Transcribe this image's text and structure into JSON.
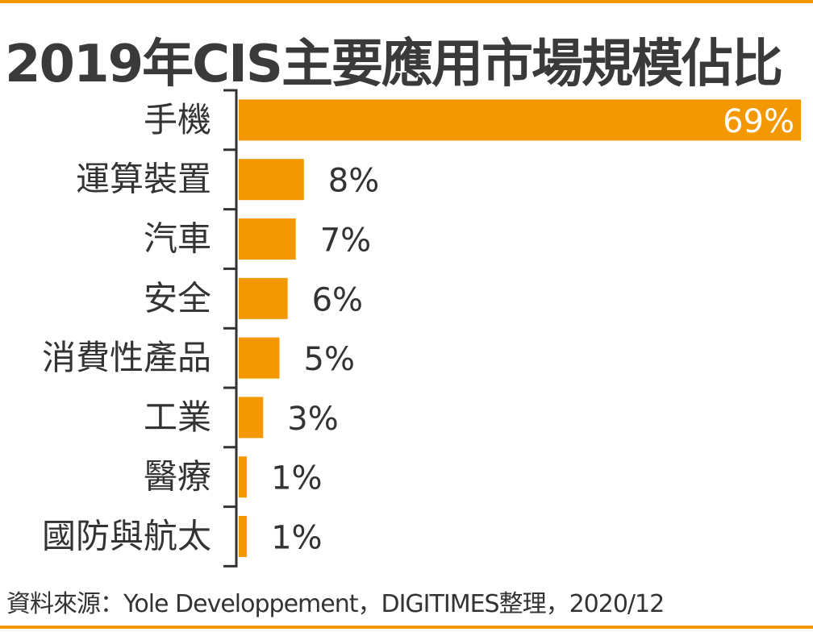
{
  "chart_data": {
    "type": "bar",
    "orientation": "horizontal",
    "title": "2019年CIS主要應用市場規模佔比",
    "categories": [
      "手機",
      "運算裝置",
      "汽車",
      "安全",
      "消費性產品",
      "工業",
      "醫療",
      "國防與航太"
    ],
    "values": [
      69,
      8,
      7,
      6,
      5,
      3,
      1,
      1
    ],
    "data_labels": [
      "69%",
      "8%",
      "7%",
      "6%",
      "5%",
      "3%",
      "1%",
      "1%"
    ],
    "unit": "%",
    "xlim": [
      0,
      69
    ],
    "grid": false,
    "legend": "none",
    "source": "資料來源：Yole Developpement，DIGITIMES整理，2020/12",
    "colors": {
      "bar": "#f39800",
      "rule": "#f39800",
      "axis": "#333333",
      "text": "#333333",
      "inner_label": "#ffffff"
    }
  }
}
